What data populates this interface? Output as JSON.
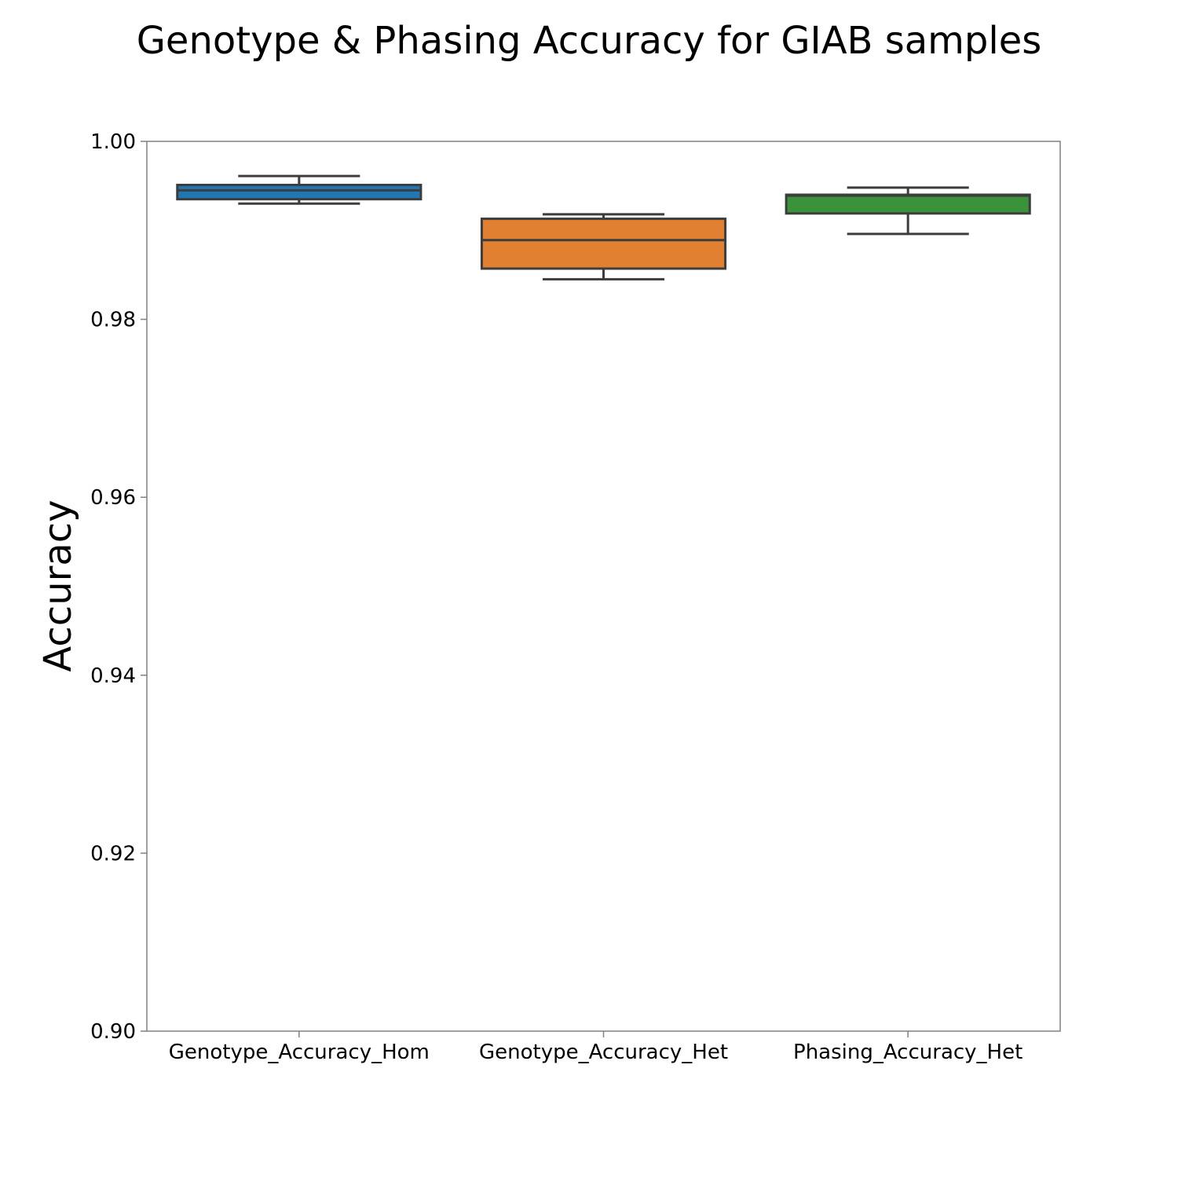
{
  "chart_data": {
    "type": "box",
    "title": "Genotype & Phasing Accuracy for GIAB samples",
    "xlabel": "",
    "ylabel": "Accuracy",
    "ylim": [
      0.9,
      1.0
    ],
    "yticks": [
      "0.90",
      "0.92",
      "0.94",
      "0.96",
      "0.98",
      "1.00"
    ],
    "grid": false,
    "categories": [
      "Genotype_Accuracy_Hom",
      "Genotype_Accuracy_Het",
      "Phasing_Accuracy_Het"
    ],
    "boxes": [
      {
        "category": "Genotype_Accuracy_Hom",
        "min": 0.993,
        "q1": 0.9935,
        "median": 0.9945,
        "q3": 0.9951,
        "max": 0.9961,
        "color": "#1f77b4"
      },
      {
        "category": "Genotype_Accuracy_Het",
        "min": 0.9845,
        "q1": 0.9857,
        "median": 0.9889,
        "q3": 0.9913,
        "max": 0.9918,
        "color": "#e08030"
      },
      {
        "category": "Phasing_Accuracy_Het",
        "min": 0.9896,
        "q1": 0.9919,
        "median": 0.9939,
        "q3": 0.994,
        "max": 0.9948,
        "color": "#3a923a"
      }
    ]
  }
}
